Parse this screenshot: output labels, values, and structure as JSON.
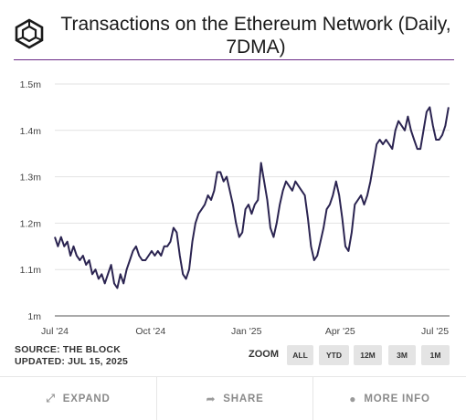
{
  "header": {
    "title": "Transactions on the Ethereum Network (Daily, 7DMA)",
    "logo": "the-block-cube-logo"
  },
  "chart_data": {
    "type": "line",
    "title": "Transactions on the Ethereum Network (Daily, 7DMA)",
    "xlabel": "",
    "ylabel": "",
    "ylim": [
      1.0,
      1.5
    ],
    "y_ticks": [
      1.0,
      1.1,
      1.2,
      1.3,
      1.4,
      1.5
    ],
    "y_tick_labels": [
      "1m",
      "1.1m",
      "1.2m",
      "1.3m",
      "1.4m",
      "1.5m"
    ],
    "x_tick_labels": [
      "Jul '24",
      "Oct '24",
      "Jan '25",
      "Apr '25",
      "Jul '25"
    ],
    "x_tick_dates": [
      "2024-07-01",
      "2024-10-01",
      "2025-01-01",
      "2025-04-01",
      "2025-07-01"
    ],
    "x_range": [
      "2024-07-01",
      "2025-07-15"
    ],
    "grid": "horizontal",
    "line_color": "#2b2451",
    "series": [
      {
        "name": "",
        "points": [
          [
            "2024-07-01",
            1.17
          ],
          [
            "2024-07-04",
            1.15
          ],
          [
            "2024-07-07",
            1.17
          ],
          [
            "2024-07-10",
            1.15
          ],
          [
            "2024-07-13",
            1.16
          ],
          [
            "2024-07-16",
            1.13
          ],
          [
            "2024-07-19",
            1.15
          ],
          [
            "2024-07-22",
            1.13
          ],
          [
            "2024-07-25",
            1.12
          ],
          [
            "2024-07-28",
            1.13
          ],
          [
            "2024-07-31",
            1.11
          ],
          [
            "2024-08-03",
            1.12
          ],
          [
            "2024-08-06",
            1.09
          ],
          [
            "2024-08-09",
            1.1
          ],
          [
            "2024-08-12",
            1.08
          ],
          [
            "2024-08-15",
            1.09
          ],
          [
            "2024-08-18",
            1.07
          ],
          [
            "2024-08-21",
            1.09
          ],
          [
            "2024-08-24",
            1.11
          ],
          [
            "2024-08-27",
            1.07
          ],
          [
            "2024-08-30",
            1.06
          ],
          [
            "2024-09-02",
            1.09
          ],
          [
            "2024-09-05",
            1.07
          ],
          [
            "2024-09-08",
            1.1
          ],
          [
            "2024-09-11",
            1.12
          ],
          [
            "2024-09-14",
            1.14
          ],
          [
            "2024-09-17",
            1.15
          ],
          [
            "2024-09-20",
            1.13
          ],
          [
            "2024-09-23",
            1.12
          ],
          [
            "2024-09-26",
            1.12
          ],
          [
            "2024-09-29",
            1.13
          ],
          [
            "2024-10-02",
            1.14
          ],
          [
            "2024-10-05",
            1.13
          ],
          [
            "2024-10-08",
            1.14
          ],
          [
            "2024-10-11",
            1.13
          ],
          [
            "2024-10-14",
            1.15
          ],
          [
            "2024-10-17",
            1.15
          ],
          [
            "2024-10-20",
            1.16
          ],
          [
            "2024-10-23",
            1.19
          ],
          [
            "2024-10-26",
            1.18
          ],
          [
            "2024-10-29",
            1.13
          ],
          [
            "2024-11-01",
            1.09
          ],
          [
            "2024-11-04",
            1.08
          ],
          [
            "2024-11-07",
            1.1
          ],
          [
            "2024-11-10",
            1.16
          ],
          [
            "2024-11-13",
            1.2
          ],
          [
            "2024-11-16",
            1.22
          ],
          [
            "2024-11-19",
            1.23
          ],
          [
            "2024-11-22",
            1.24
          ],
          [
            "2024-11-25",
            1.26
          ],
          [
            "2024-11-28",
            1.25
          ],
          [
            "2024-12-01",
            1.27
          ],
          [
            "2024-12-04",
            1.31
          ],
          [
            "2024-12-07",
            1.31
          ],
          [
            "2024-12-10",
            1.29
          ],
          [
            "2024-12-13",
            1.3
          ],
          [
            "2024-12-16",
            1.27
          ],
          [
            "2024-12-19",
            1.24
          ],
          [
            "2024-12-22",
            1.2
          ],
          [
            "2024-12-25",
            1.17
          ],
          [
            "2024-12-28",
            1.18
          ],
          [
            "2024-12-31",
            1.23
          ],
          [
            "2025-01-03",
            1.24
          ],
          [
            "2025-01-06",
            1.22
          ],
          [
            "2025-01-09",
            1.24
          ],
          [
            "2025-01-12",
            1.25
          ],
          [
            "2025-01-15",
            1.33
          ],
          [
            "2025-01-18",
            1.29
          ],
          [
            "2025-01-21",
            1.25
          ],
          [
            "2025-01-24",
            1.19
          ],
          [
            "2025-01-27",
            1.17
          ],
          [
            "2025-01-30",
            1.2
          ],
          [
            "2025-02-02",
            1.24
          ],
          [
            "2025-02-05",
            1.27
          ],
          [
            "2025-02-08",
            1.29
          ],
          [
            "2025-02-11",
            1.28
          ],
          [
            "2025-02-14",
            1.27
          ],
          [
            "2025-02-17",
            1.29
          ],
          [
            "2025-02-20",
            1.28
          ],
          [
            "2025-02-23",
            1.27
          ],
          [
            "2025-02-26",
            1.26
          ],
          [
            "2025-03-01",
            1.21
          ],
          [
            "2025-03-04",
            1.15
          ],
          [
            "2025-03-07",
            1.12
          ],
          [
            "2025-03-10",
            1.13
          ],
          [
            "2025-03-13",
            1.16
          ],
          [
            "2025-03-16",
            1.19
          ],
          [
            "2025-03-19",
            1.23
          ],
          [
            "2025-03-22",
            1.24
          ],
          [
            "2025-03-25",
            1.26
          ],
          [
            "2025-03-28",
            1.29
          ],
          [
            "2025-03-31",
            1.26
          ],
          [
            "2025-04-03",
            1.21
          ],
          [
            "2025-04-06",
            1.15
          ],
          [
            "2025-04-09",
            1.14
          ],
          [
            "2025-04-12",
            1.18
          ],
          [
            "2025-04-15",
            1.24
          ],
          [
            "2025-04-18",
            1.25
          ],
          [
            "2025-04-21",
            1.26
          ],
          [
            "2025-04-24",
            1.24
          ],
          [
            "2025-04-27",
            1.26
          ],
          [
            "2025-04-30",
            1.29
          ],
          [
            "2025-05-03",
            1.33
          ],
          [
            "2025-05-06",
            1.37
          ],
          [
            "2025-05-09",
            1.38
          ],
          [
            "2025-05-12",
            1.37
          ],
          [
            "2025-05-15",
            1.38
          ],
          [
            "2025-05-18",
            1.37
          ],
          [
            "2025-05-21",
            1.36
          ],
          [
            "2025-05-24",
            1.4
          ],
          [
            "2025-05-27",
            1.42
          ],
          [
            "2025-05-30",
            1.41
          ],
          [
            "2025-06-02",
            1.4
          ],
          [
            "2025-06-05",
            1.43
          ],
          [
            "2025-06-08",
            1.4
          ],
          [
            "2025-06-11",
            1.38
          ],
          [
            "2025-06-14",
            1.36
          ],
          [
            "2025-06-17",
            1.36
          ],
          [
            "2025-06-20",
            1.4
          ],
          [
            "2025-06-23",
            1.44
          ],
          [
            "2025-06-26",
            1.45
          ],
          [
            "2025-06-29",
            1.41
          ],
          [
            "2025-07-02",
            1.38
          ],
          [
            "2025-07-05",
            1.38
          ],
          [
            "2025-07-08",
            1.39
          ],
          [
            "2025-07-11",
            1.41
          ],
          [
            "2025-07-14",
            1.45
          ]
        ]
      }
    ]
  },
  "source": {
    "line1": "SOURCE: THE BLOCK",
    "line2": "UPDATED: JUL 15, 2025"
  },
  "zoom": {
    "label": "ZOOM",
    "options": [
      "ALL",
      "YTD",
      "12M",
      "3M",
      "1M"
    ]
  },
  "footer": {
    "expand": "EXPAND",
    "share": "SHARE",
    "more_info": "MORE INFO"
  }
}
